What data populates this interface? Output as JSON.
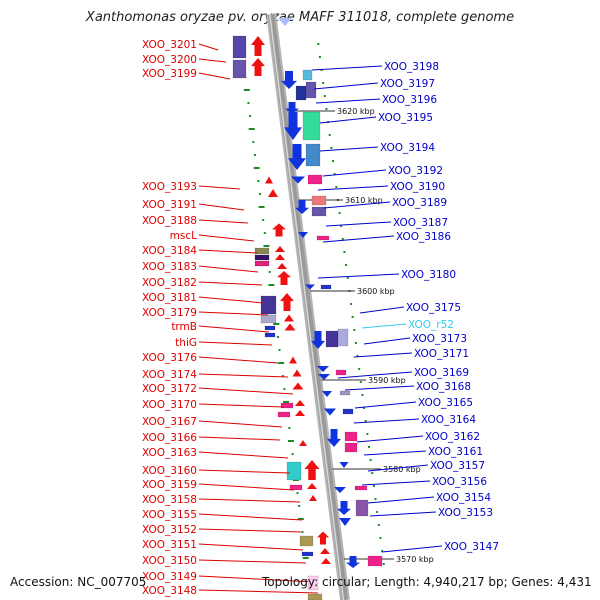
{
  "title": "Xanthomonas oryzae pv. oryzae MAFF 311018, complete genome",
  "footer": {
    "accession": "Accession: NC_007705",
    "topology": "Topology: circular; Length: 4,940,217 bp; Genes: 4,431"
  },
  "colors": {
    "left_label": "#dd0000",
    "right_label": "#0000cc",
    "rna_label": "#33ccee",
    "backbone": "#999999",
    "tick": "#228b22"
  },
  "scale_labels": [
    "3620 kbp",
    "3610 kbp",
    "3600 kbp",
    "3590 kbp",
    "3580 kbp",
    "3570 kbp"
  ],
  "left_labels": [
    "XOO_3201",
    "XOO_3200",
    "XOO_3199",
    "XOO_3193",
    "XOO_3191",
    "XOO_3188",
    "mscL",
    "XOO_3184",
    "XOO_3183",
    "XOO_3182",
    "XOO_3181",
    "XOO_3179",
    "trmB",
    "thiG",
    "XOO_3176",
    "XOO_3174",
    "XOO_3172",
    "XOO_3170",
    "XOO_3167",
    "XOO_3166",
    "XOO_3163",
    "XOO_3160",
    "XOO_3159",
    "XOO_3158",
    "XOO_3155",
    "XOO_3152",
    "XOO_3151",
    "XOO_3150",
    "XOO_3149",
    "XOO_3148"
  ],
  "right_labels": [
    "XOO_3198",
    "XOO_3197",
    "XOO_3196",
    "XOO_3195",
    "XOO_3194",
    "XOO_3192",
    "XOO_3190",
    "XOO_3189",
    "XOO_3187",
    "XOO_3186",
    "XOO_3180",
    "XOO_3175",
    "XOO_r52",
    "XOO_3173",
    "XOO_3171",
    "XOO_3169",
    "XOO_3168",
    "XOO_3165",
    "XOO_3164",
    "XOO_3162",
    "XOO_3161",
    "XOO_3157",
    "XOO_3156",
    "XOO_3154",
    "XOO_3153",
    "XOO_3147"
  ]
}
